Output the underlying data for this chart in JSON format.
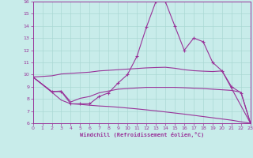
{
  "background_color": "#c8ecea",
  "grid_color": "#aad8d4",
  "line_color": "#993399",
  "xlabel": "Windchill (Refroidissement éolien,°C)",
  "ylim": [
    6,
    16
  ],
  "xlim": [
    0,
    23
  ],
  "yticks": [
    6,
    7,
    8,
    9,
    10,
    11,
    12,
    13,
    14,
    15,
    16
  ],
  "xticks": [
    0,
    1,
    2,
    3,
    4,
    5,
    6,
    7,
    8,
    9,
    10,
    11,
    12,
    13,
    14,
    15,
    16,
    17,
    18,
    19,
    20,
    21,
    22,
    23
  ],
  "line1_x": [
    0,
    2,
    3,
    4,
    5,
    6,
    7,
    8,
    9,
    10,
    11,
    12,
    13,
    14,
    15,
    16,
    17,
    18,
    19,
    20,
    21,
    22,
    23
  ],
  "line1_y": [
    9.8,
    8.6,
    8.6,
    7.6,
    7.6,
    7.6,
    8.2,
    8.5,
    9.3,
    10.0,
    11.5,
    13.9,
    16.0,
    16.0,
    14.0,
    12.0,
    13.0,
    12.7,
    11.0,
    10.3,
    9.0,
    8.5,
    6.0
  ],
  "line2_x": [
    0,
    2,
    3,
    4,
    5,
    6,
    7,
    8,
    9,
    10,
    11,
    12,
    13,
    14,
    15,
    16,
    17,
    18,
    19,
    20,
    23
  ],
  "line2_y": [
    9.8,
    9.9,
    10.05,
    10.1,
    10.15,
    10.2,
    10.3,
    10.35,
    10.4,
    10.45,
    10.5,
    10.55,
    10.58,
    10.6,
    10.52,
    10.4,
    10.32,
    10.28,
    10.25,
    10.3,
    6.0
  ],
  "line3_x": [
    0,
    2,
    3,
    4,
    5,
    6,
    7,
    8,
    9,
    10,
    11,
    12,
    13,
    14,
    15,
    16,
    17,
    18,
    19,
    20,
    21,
    22,
    23
  ],
  "line3_y": [
    9.8,
    8.6,
    8.65,
    7.75,
    8.05,
    8.2,
    8.5,
    8.65,
    8.8,
    8.85,
    8.9,
    8.95,
    8.95,
    8.95,
    8.95,
    8.92,
    8.88,
    8.85,
    8.8,
    8.75,
    8.7,
    8.55,
    6.0
  ],
  "line4_x": [
    0,
    2,
    3,
    4,
    5,
    6,
    7,
    8,
    9,
    10,
    11,
    12,
    13,
    14,
    15,
    16,
    17,
    18,
    19,
    20,
    21,
    22,
    23
  ],
  "line4_y": [
    9.8,
    8.55,
    7.9,
    7.6,
    7.55,
    7.48,
    7.42,
    7.38,
    7.32,
    7.25,
    7.18,
    7.1,
    7.02,
    6.93,
    6.84,
    6.75,
    6.65,
    6.55,
    6.45,
    6.35,
    6.25,
    6.12,
    6.0
  ]
}
